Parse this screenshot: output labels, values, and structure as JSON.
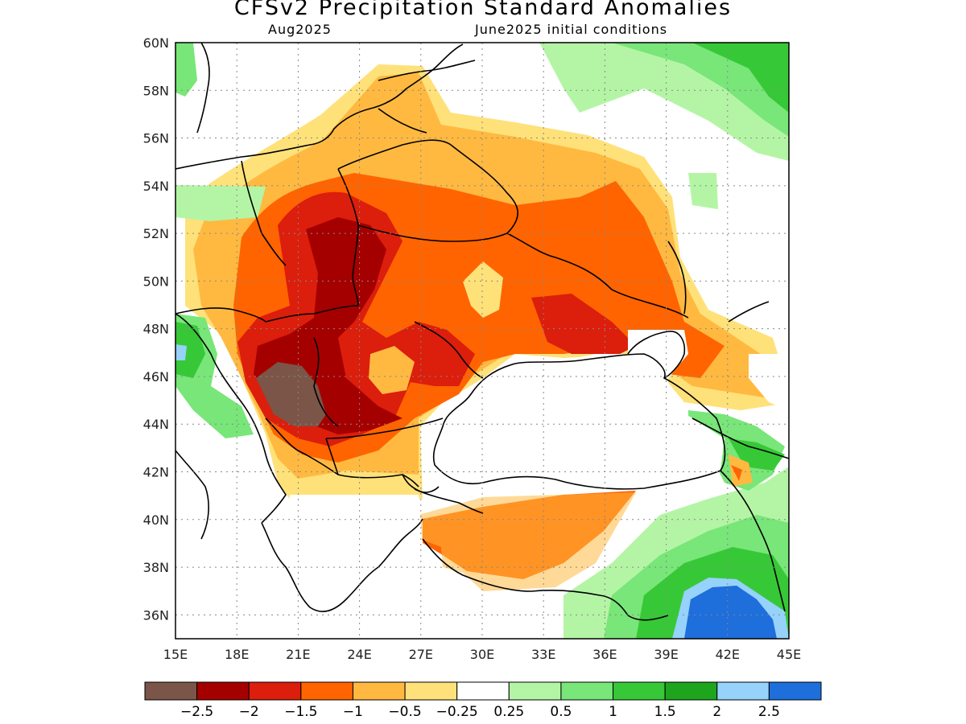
{
  "title": "CFSv2 Precipitation Standard Anomalies",
  "valid_month": "Aug2025",
  "initial_conditions": "June2025 initial conditions",
  "map": {
    "lon_range": [
      15,
      45
    ],
    "lat_range": [
      35,
      60
    ],
    "lon_ticks": [
      "15E",
      "18E",
      "21E",
      "24E",
      "27E",
      "30E",
      "33E",
      "36E",
      "39E",
      "42E",
      "45E"
    ],
    "lat_ticks": [
      "60N",
      "58N",
      "56N",
      "54N",
      "52N",
      "50N",
      "48N",
      "46N",
      "44N",
      "42N",
      "40N",
      "38N",
      "36N"
    ],
    "grid": "dotted",
    "summary": "Dry anomalies over Eastern Europe, Ukraine and western Russia; strongest (below -2.5) over Serbia/Romania; wet anomalies over NE Turkey, Caucasus and northern Russia"
  },
  "colorbar": {
    "labels": [
      "−2.5",
      "−2",
      "−1.5",
      "−1",
      "−0.5",
      "−0.25",
      "0.25",
      "0.5",
      "1",
      "1.5",
      "2",
      "2.5"
    ],
    "colors": [
      "#7a5548",
      "#a50000",
      "#dc1e0c",
      "#ff6400",
      "#ffb941",
      "#ffe17a",
      "#ffffff",
      "#b4f5a5",
      "#78e678",
      "#37c837",
      "#1ea51e",
      "#96d2fa",
      "#1e6edc"
    ]
  }
}
